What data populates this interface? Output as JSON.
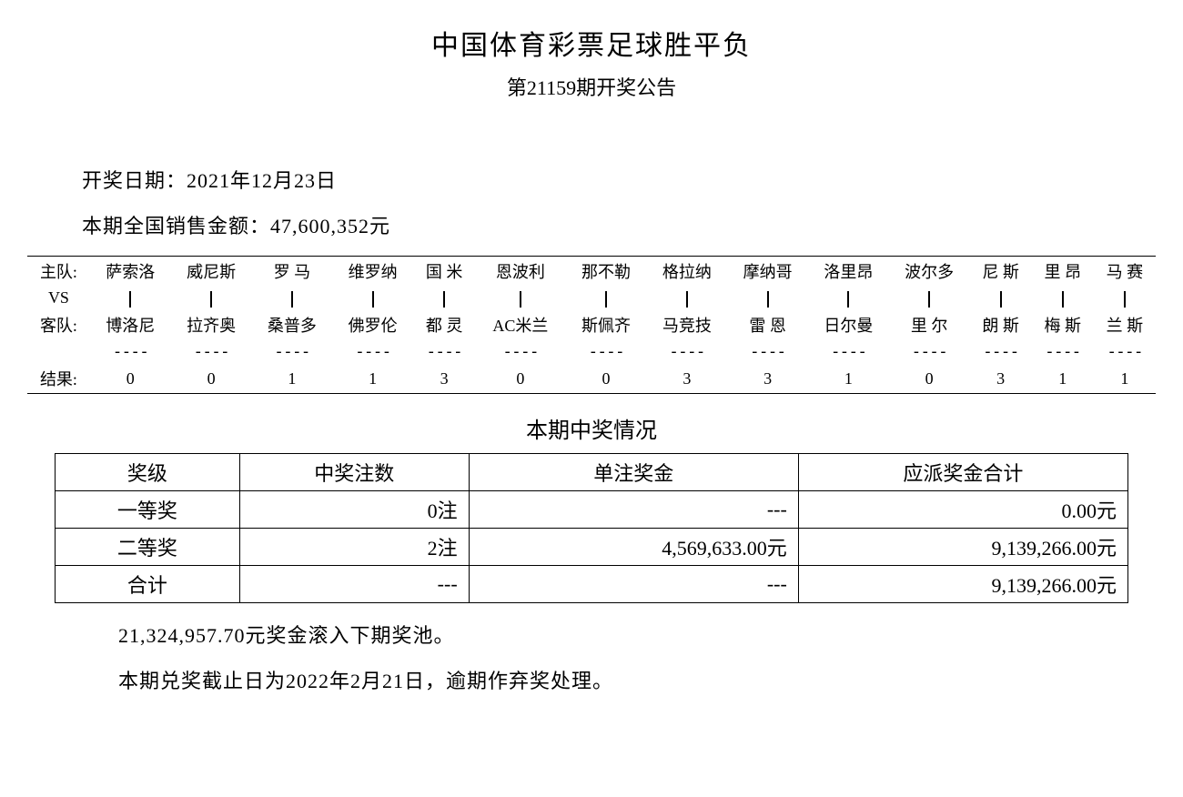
{
  "header": {
    "title": "中国体育彩票足球胜平负",
    "subtitle": "第21159期开奖公告"
  },
  "info": {
    "date_label": "开奖日期：",
    "date_value": "2021年12月23日",
    "sales_label": "本期全国销售金额：",
    "sales_value": "47,600,352元"
  },
  "match": {
    "row_labels": {
      "home": "主队:",
      "vs": "VS",
      "away": "客队:",
      "result": "结果:"
    },
    "homes": [
      "萨索洛",
      "威尼斯",
      "罗 马",
      "维罗纳",
      "国 米",
      "恩波利",
      "那不勒",
      "格拉纳",
      "摩纳哥",
      "洛里昂",
      "波尔多",
      "尼 斯",
      "里 昂",
      "马 赛"
    ],
    "aways": [
      "博洛尼",
      "拉齐奥",
      "桑普多",
      "佛罗伦",
      "都 灵",
      "AC米兰",
      "斯佩齐",
      "马竞技",
      "雷 恩",
      "日尔曼",
      "里 尔",
      "朗 斯",
      "梅 斯",
      "兰 斯"
    ],
    "results": [
      "0",
      "0",
      "1",
      "1",
      "3",
      "0",
      "0",
      "3",
      "3",
      "1",
      "0",
      "3",
      "1",
      "1"
    ],
    "dash": "----"
  },
  "prize": {
    "section_title": "本期中奖情况",
    "columns": [
      "奖级",
      "中奖注数",
      "单注奖金",
      "应派奖金合计"
    ],
    "rows": [
      {
        "level": "一等奖",
        "count": "0注",
        "unit": "---",
        "total": "0.00元"
      },
      {
        "level": "二等奖",
        "count": "2注",
        "unit": "4,569,633.00元",
        "total": "9,139,266.00元"
      },
      {
        "level": "合计",
        "count": "---",
        "unit": "---",
        "total": "9,139,266.00元"
      }
    ]
  },
  "notes": {
    "rollover": "21,324,957.70元奖金滚入下期奖池。",
    "deadline": "本期兑奖截止日为2022年2月21日，逾期作弃奖处理。"
  },
  "style": {
    "border_color": "#000000",
    "background_color": "#ffffff",
    "text_color": "#000000",
    "title_fontsize": 30,
    "subtitle_fontsize": 22,
    "body_fontsize": 22,
    "match_fontsize": 18,
    "font_family": "SimSun"
  }
}
